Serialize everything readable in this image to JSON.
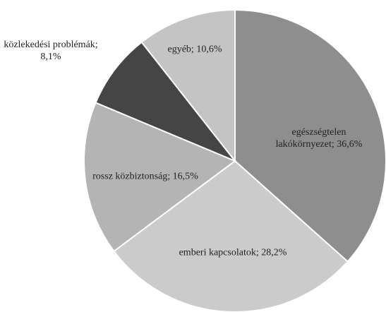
{
  "chart_data": {
    "type": "pie",
    "values": [
      36.6,
      28.2,
      16.5,
      8.1,
      10.6
    ],
    "value_labels": [
      "egészségtelen lakókörnyezet; 36,6%",
      "emberi kapcsolatok; 28,2%",
      "rossz közbiztonság; 16,5%",
      "közlekedési problémák; 8,1%",
      "egyéb; 10,6%"
    ],
    "colors": [
      "#8e8e8e",
      "#cbcbcb",
      "#b4b4b4",
      "#454545",
      "#c4c4c4"
    ]
  }
}
